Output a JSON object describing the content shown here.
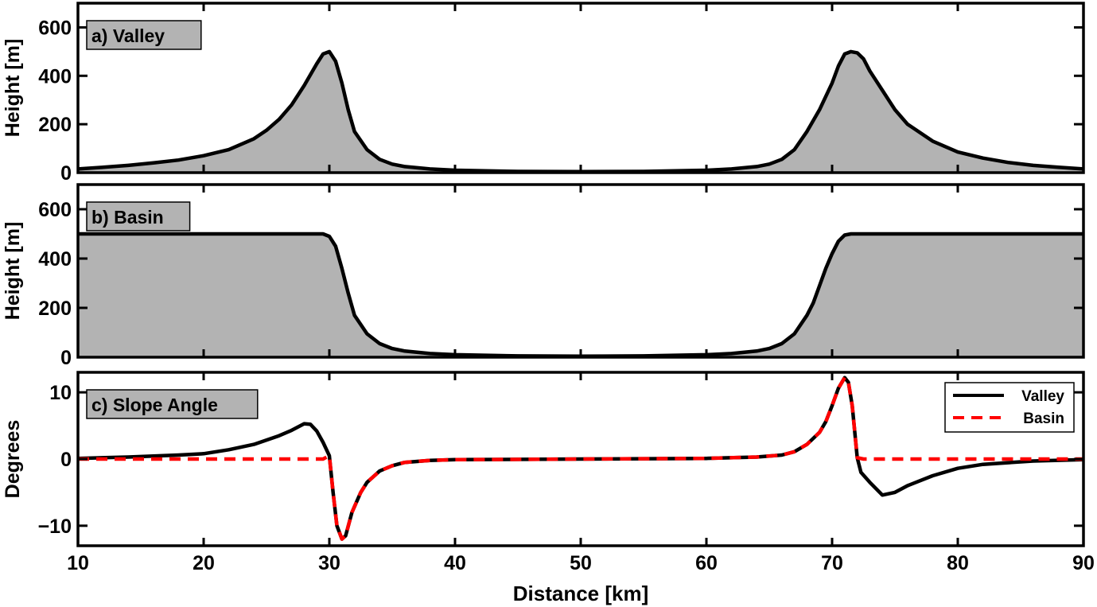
{
  "chart_data": [
    {
      "type": "area",
      "panel_label": "a) Valley",
      "ylabel": "Height [m]",
      "xlim": [
        10,
        90
      ],
      "ylim": [
        0,
        700
      ],
      "yticks": [
        0,
        200,
        400,
        600
      ],
      "fill_color": "#b3b3b3",
      "line_color": "#000000",
      "series": [
        {
          "x": [
            10,
            12,
            14,
            16,
            18,
            20,
            22,
            24,
            25,
            26,
            27,
            28,
            29,
            29.5,
            30,
            30.5,
            31,
            31.5,
            32,
            33,
            34,
            35,
            36,
            38,
            40,
            45,
            50,
            55,
            60,
            62,
            64,
            65,
            66,
            67,
            68,
            69,
            70,
            70.5,
            71,
            71.5,
            72,
            72.5,
            73,
            74,
            75,
            76,
            78,
            80,
            82,
            84,
            86,
            88,
            90
          ],
          "y": [
            15,
            22,
            30,
            40,
            52,
            70,
            95,
            140,
            175,
            220,
            280,
            360,
            450,
            490,
            500,
            460,
            370,
            260,
            170,
            95,
            55,
            35,
            25,
            15,
            10,
            5,
            4,
            5,
            10,
            15,
            25,
            35,
            55,
            95,
            170,
            260,
            370,
            440,
            490,
            500,
            495,
            470,
            420,
            340,
            260,
            200,
            130,
            85,
            60,
            42,
            30,
            22,
            15
          ]
        }
      ]
    },
    {
      "type": "area",
      "panel_label": "b) Basin",
      "ylabel": "Height [m]",
      "xlim": [
        10,
        90
      ],
      "ylim": [
        0,
        700
      ],
      "yticks": [
        0,
        200,
        400,
        600
      ],
      "fill_color": "#b3b3b3",
      "line_color": "#000000",
      "series": [
        {
          "x": [
            10,
            20,
            29,
            29.5,
            30,
            30.5,
            31,
            31.5,
            32,
            33,
            34,
            35,
            36,
            38,
            40,
            45,
            50,
            55,
            60,
            62,
            64,
            65,
            66,
            67,
            68,
            68.5,
            69,
            69.5,
            70,
            70.5,
            71,
            71.5,
            72,
            80,
            90
          ],
          "y": [
            500,
            500,
            500,
            500,
            490,
            450,
            360,
            260,
            170,
            95,
            55,
            35,
            25,
            15,
            10,
            5,
            4,
            5,
            10,
            15,
            25,
            35,
            55,
            95,
            170,
            220,
            290,
            360,
            420,
            470,
            495,
            500,
            500,
            500,
            500
          ]
        }
      ]
    },
    {
      "type": "line",
      "panel_label": "c) Slope Angle",
      "ylabel": "Degrees",
      "xlabel": "Distance [km]",
      "xlim": [
        10,
        90
      ],
      "ylim": [
        -13,
        13
      ],
      "yticks": [
        -10,
        0,
        10
      ],
      "xticks": [
        10,
        20,
        30,
        40,
        50,
        60,
        70,
        80,
        90
      ],
      "legend_position": "top-right",
      "series": [
        {
          "name": "Valley",
          "color": "#000000",
          "dash": "solid",
          "x": [
            10,
            14,
            18,
            20,
            22,
            24,
            26,
            27,
            28,
            28.5,
            29,
            29.5,
            30,
            30.3,
            30.6,
            31,
            31.3,
            31.8,
            32.5,
            33,
            34,
            35,
            36,
            38,
            40,
            50,
            60,
            64,
            66,
            67,
            68,
            69,
            69.5,
            70,
            70.5,
            71,
            71.3,
            71.6,
            72,
            72.3,
            73,
            74,
            75,
            76,
            78,
            80,
            82,
            86,
            90
          ],
          "y": [
            0.1,
            0.3,
            0.6,
            0.8,
            1.4,
            2.2,
            3.5,
            4.3,
            5.3,
            5.2,
            4.2,
            2.5,
            0.5,
            -5,
            -10,
            -12,
            -11.5,
            -8,
            -5,
            -3.5,
            -1.8,
            -1,
            -0.5,
            -0.2,
            -0.1,
            0,
            0.1,
            0.3,
            0.6,
            1.1,
            2.2,
            4,
            5.6,
            8,
            10.6,
            12.2,
            11.5,
            8,
            0.2,
            -2,
            -3.5,
            -5.4,
            -5,
            -4,
            -2.5,
            -1.4,
            -0.8,
            -0.3,
            -0.1
          ]
        },
        {
          "name": "Basin",
          "color": "#ff0000",
          "dash": "dashed",
          "x": [
            10,
            20,
            29.5,
            30,
            30.3,
            30.6,
            31,
            31.3,
            31.8,
            32.5,
            33,
            34,
            35,
            36,
            38,
            40,
            50,
            60,
            64,
            66,
            67,
            68,
            69,
            69.5,
            70,
            70.5,
            71,
            71.3,
            71.6,
            72,
            72.5,
            80,
            90
          ],
          "y": [
            0,
            0,
            0,
            0.5,
            -5,
            -10,
            -12,
            -11.5,
            -8,
            -5,
            -3.5,
            -1.8,
            -1,
            -0.5,
            -0.2,
            -0.1,
            0,
            0.1,
            0.3,
            0.6,
            1.1,
            2.2,
            4,
            5.6,
            8,
            10.6,
            12.2,
            11.5,
            8,
            0.2,
            0,
            0,
            0
          ]
        }
      ]
    }
  ]
}
